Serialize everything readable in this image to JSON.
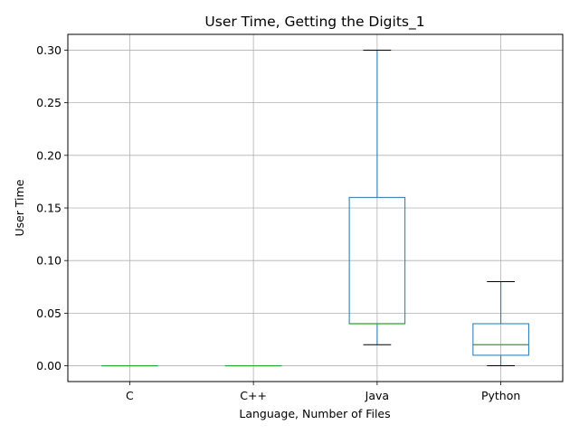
{
  "chart_data": {
    "type": "box",
    "title": "User Time, Getting the Digits_1",
    "xlabel": "Language, Number of Files",
    "ylabel": "User Time",
    "ylim": [
      -0.015,
      0.315
    ],
    "yticks": [
      "0.00",
      "0.05",
      "0.10",
      "0.15",
      "0.20",
      "0.25",
      "0.30"
    ],
    "grid": true,
    "legend": "none",
    "colors": {
      "box": "#1f77b4",
      "median": "#2ca02c",
      "cap": "#000000",
      "grid": "#b0b0b0"
    },
    "categories": [
      "C",
      "C++",
      "Java",
      "Python"
    ],
    "boxes": [
      {
        "category": "C",
        "whisker_low": 0.0,
        "q1": 0.0,
        "median": 0.0,
        "q3": 0.0,
        "whisker_high": 0.0
      },
      {
        "category": "C++",
        "whisker_low": 0.0,
        "q1": 0.0,
        "median": 0.0,
        "q3": 0.0,
        "whisker_high": 0.0
      },
      {
        "category": "Java",
        "whisker_low": 0.02,
        "q1": 0.04,
        "median": 0.04,
        "q3": 0.16,
        "whisker_high": 0.3
      },
      {
        "category": "Python",
        "whisker_low": 0.0,
        "q1": 0.01,
        "median": 0.02,
        "q3": 0.04,
        "whisker_high": 0.08
      }
    ]
  }
}
